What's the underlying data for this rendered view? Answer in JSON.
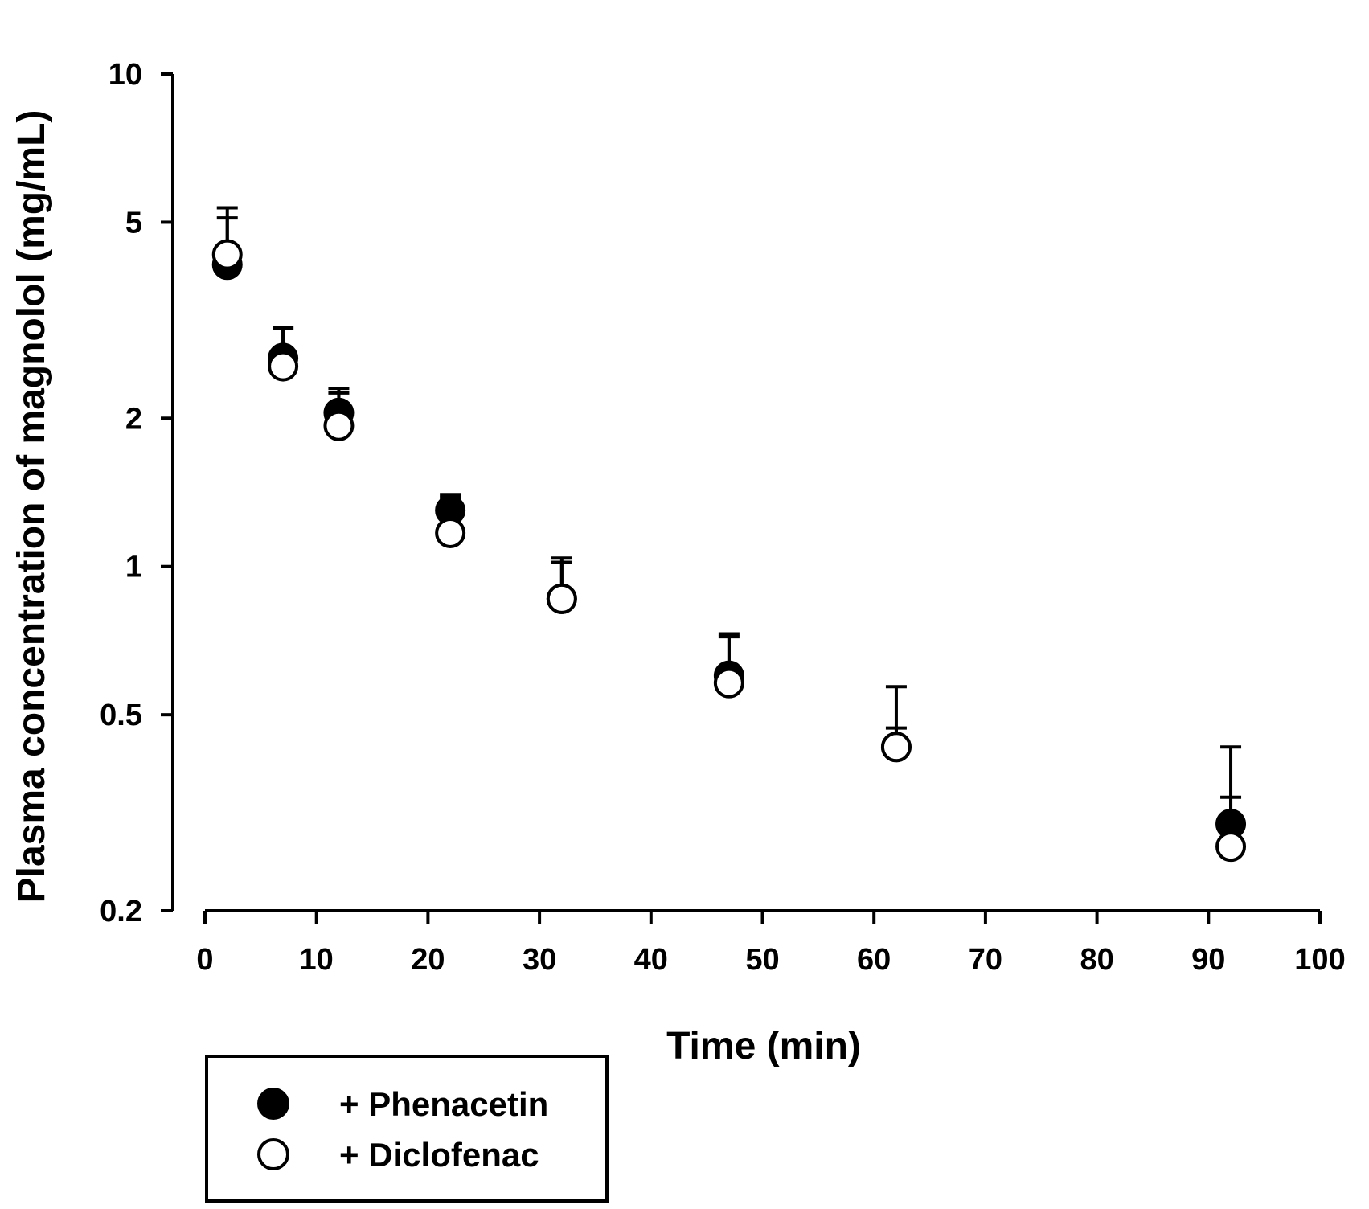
{
  "chart_data": {
    "type": "scatter",
    "xlabel": "Time (min)",
    "ylabel": "Plasma concentration of magnolol (mg/mL)",
    "xlim": [
      0,
      100
    ],
    "ylim": [
      0.2,
      10
    ],
    "yscale": "log",
    "xticks": [
      0,
      10,
      20,
      30,
      40,
      50,
      60,
      70,
      80,
      90,
      100
    ],
    "yticks": [
      0.2,
      0.5,
      1,
      2,
      5,
      10
    ],
    "ytick_labels": [
      "0.2",
      "0.5",
      "1",
      "2",
      "5",
      "10"
    ],
    "xtick_labels": [
      "0",
      "10",
      "20",
      "30",
      "40",
      "50",
      "60",
      "70",
      "80",
      "90",
      "100"
    ],
    "legend_position": "bottom-left",
    "series": [
      {
        "name": "+ Phenacetin",
        "marker": "filled-circle",
        "color": "#000000",
        "x": [
          2,
          7,
          12,
          22,
          32,
          47,
          62,
          92
        ],
        "y": [
          4.1,
          2.65,
          2.05,
          1.3,
          0.86,
          0.6,
          0.43,
          0.3
        ],
        "error_upper": [
          5.1,
          3.05,
          2.3,
          1.4,
          1.02,
          0.72,
          0.47,
          0.34
        ]
      },
      {
        "name": "+ Diclofenac",
        "marker": "open-circle",
        "color": "#000000",
        "x": [
          2,
          7,
          12,
          22,
          32,
          47,
          62,
          92
        ],
        "y": [
          4.3,
          2.55,
          1.93,
          1.17,
          0.86,
          0.58,
          0.43,
          0.27
        ],
        "error_upper": [
          5.35,
          3.05,
          2.25,
          1.38,
          1.04,
          0.73,
          0.57,
          0.43
        ]
      }
    ]
  }
}
